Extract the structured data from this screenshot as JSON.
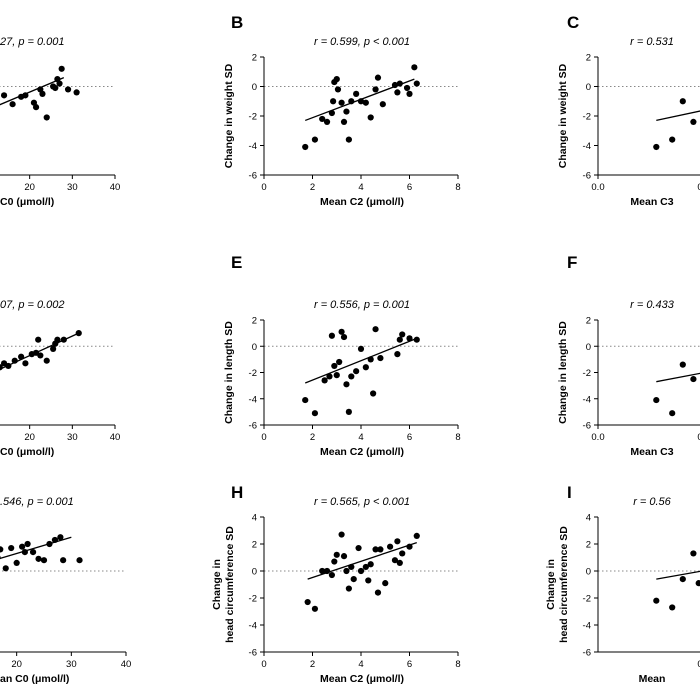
{
  "figure": {
    "background": "#ffffff",
    "axis_color": "#000000",
    "point_color": "#000000",
    "reference_line_color": "#888888"
  },
  "chart_data": [
    {
      "panel": "A",
      "type": "scatter",
      "stat_text": "27, p = 0.001",
      "xlabel": "C0 (μmol/l)",
      "ylabel": "",
      "xticks": [
        "20",
        "30",
        "40"
      ],
      "yticks": [],
      "xlim": [
        10,
        40
      ],
      "ylim": [
        -6,
        2
      ],
      "grid": false,
      "points": [
        [
          10.5,
          -0.3
        ],
        [
          11,
          -0.8
        ],
        [
          12,
          0.5
        ],
        [
          14,
          -0.6
        ],
        [
          16,
          -1.2
        ],
        [
          18,
          -0.7
        ],
        [
          19,
          -0.6
        ],
        [
          21,
          -1.1
        ],
        [
          21.5,
          -1.4
        ],
        [
          23,
          -0.5
        ],
        [
          22.5,
          -0.2
        ],
        [
          24,
          -2.1
        ],
        [
          26,
          -0.1
        ],
        [
          26.5,
          0.5
        ],
        [
          25.5,
          0
        ],
        [
          27,
          0.2
        ],
        [
          27.5,
          1.2
        ],
        [
          29,
          -0.2
        ],
        [
          31,
          -0.4
        ]
      ],
      "fit": [
        [
          10,
          -1.6
        ],
        [
          28,
          0.6
        ]
      ]
    },
    {
      "panel": "B",
      "type": "scatter",
      "stat_text": "r = 0.599, p < 0.001",
      "xlabel": "Mean C2 (μmol/l)",
      "ylabel": "Change in weight SD",
      "xticks": [
        "0",
        "2",
        "4",
        "6",
        "8"
      ],
      "yticks": [
        "2",
        "0",
        "-2",
        "-4",
        "-6"
      ],
      "xlim": [
        0,
        8
      ],
      "ylim": [
        -6,
        2
      ],
      "grid": false,
      "points": [
        [
          1.7,
          -4.1
        ],
        [
          2.1,
          -3.6
        ],
        [
          2.4,
          -2.2
        ],
        [
          2.6,
          -2.4
        ],
        [
          2.8,
          -1.8
        ],
        [
          2.85,
          -1
        ],
        [
          2.9,
          0.3
        ],
        [
          3,
          0.5
        ],
        [
          3.05,
          -0.2
        ],
        [
          3.2,
          -1.1
        ],
        [
          3.3,
          -2.4
        ],
        [
          3.4,
          -1.7
        ],
        [
          3.5,
          -3.6
        ],
        [
          3.6,
          -1
        ],
        [
          3.8,
          -0.5
        ],
        [
          4,
          -1
        ],
        [
          4.2,
          -1.1
        ],
        [
          4.4,
          -2.1
        ],
        [
          4.6,
          -0.2
        ],
        [
          4.7,
          0.6
        ],
        [
          4.9,
          -1.2
        ],
        [
          5.4,
          0.1
        ],
        [
          5.5,
          -0.4
        ],
        [
          5.6,
          0.2
        ],
        [
          5.9,
          -0.1
        ],
        [
          6,
          -0.5
        ],
        [
          6.2,
          1.3
        ],
        [
          6.3,
          0.2
        ]
      ],
      "fit": [
        [
          1.7,
          -2.3
        ],
        [
          6.2,
          0.5
        ]
      ]
    },
    {
      "panel": "C",
      "type": "scatter",
      "stat_text": "r = 0.531",
      "xlabel": "Mean C3",
      "ylabel": "Change in weight SD",
      "xticks": [
        "0.0",
        "0.2",
        "0"
      ],
      "yticks": [
        "2",
        "0",
        "-2",
        "-4",
        "-6"
      ],
      "xlim": [
        0,
        0.5
      ],
      "ylim": [
        -6,
        2
      ],
      "grid": false,
      "points": [
        [
          0.11,
          -4.1
        ],
        [
          0.14,
          -3.6
        ],
        [
          0.16,
          -1
        ],
        [
          0.18,
          -2.4
        ],
        [
          0.2,
          0.1
        ],
        [
          0.21,
          -1.9
        ],
        [
          0.22,
          -1
        ],
        [
          0.23,
          -0.6
        ],
        [
          0.24,
          -2.5
        ],
        [
          0.25,
          -1.7
        ],
        [
          0.26,
          -0.5
        ],
        [
          0.27,
          -1.1
        ],
        [
          0.28,
          -2
        ],
        [
          0.29,
          -1.6
        ],
        [
          0.3,
          -1.2
        ],
        [
          0.31,
          -0.4
        ],
        [
          0.33,
          0.5
        ],
        [
          0.34,
          0.3
        ],
        [
          0.35,
          0.7
        ],
        [
          0.36,
          -0.7
        ],
        [
          0.37,
          0
        ]
      ],
      "fit": [
        [
          0.11,
          -2.3
        ],
        [
          0.37,
          -0.3
        ]
      ]
    },
    {
      "panel": "D",
      "type": "scatter",
      "stat_text": "07, p = 0.002",
      "xlabel": "C0 (μmol/l)",
      "ylabel": "",
      "xticks": [
        "20",
        "30",
        "40"
      ],
      "yticks": [],
      "xlim": [
        10,
        40
      ],
      "ylim": [
        -6,
        2
      ],
      "grid": false,
      "points": [
        [
          10.5,
          -1.3
        ],
        [
          11.5,
          -2
        ],
        [
          13,
          -1.6
        ],
        [
          14,
          -1.3
        ],
        [
          15,
          -1.5
        ],
        [
          16.5,
          -1.1
        ],
        [
          18,
          -0.8
        ],
        [
          19,
          -1.3
        ],
        [
          20.5,
          -0.6
        ],
        [
          21.5,
          -0.5
        ],
        [
          22.5,
          -0.7
        ],
        [
          22,
          0.5
        ],
        [
          24,
          -1.1
        ],
        [
          25.5,
          -0.2
        ],
        [
          26,
          0.2
        ],
        [
          26.5,
          0.5
        ],
        [
          28,
          0.5
        ],
        [
          31.5,
          1
        ]
      ],
      "fit": [
        [
          10,
          -2.2
        ],
        [
          31.5,
          1
        ]
      ]
    },
    {
      "panel": "E",
      "type": "scatter",
      "stat_text": "r = 0.556, p = 0.001",
      "xlabel": "Mean C2 (μmol/l)",
      "ylabel": "Change in length SD",
      "xticks": [
        "0",
        "2",
        "4",
        "6",
        "8"
      ],
      "yticks": [
        "2",
        "0",
        "-2",
        "-4",
        "-6"
      ],
      "xlim": [
        0,
        8
      ],
      "ylim": [
        -6,
        2
      ],
      "grid": false,
      "points": [
        [
          1.7,
          -4.1
        ],
        [
          2.1,
          -5.1
        ],
        [
          2.5,
          -2.6
        ],
        [
          2.7,
          -2.3
        ],
        [
          2.8,
          0.8
        ],
        [
          2.9,
          -1.5
        ],
        [
          3,
          -2.2
        ],
        [
          3.2,
          1.1
        ],
        [
          3.3,
          0.7
        ],
        [
          3.1,
          -1.2
        ],
        [
          3.4,
          -2.9
        ],
        [
          3.5,
          -5
        ],
        [
          3.6,
          -2.3
        ],
        [
          3.8,
          -1.9
        ],
        [
          4,
          -0.2
        ],
        [
          4.2,
          -1.6
        ],
        [
          4.4,
          -1
        ],
        [
          4.5,
          -3.6
        ],
        [
          4.6,
          1.3
        ],
        [
          4.8,
          -0.9
        ],
        [
          5.5,
          -0.6
        ],
        [
          5.6,
          0.5
        ],
        [
          5.7,
          0.9
        ],
        [
          6,
          0.6
        ],
        [
          6.3,
          0.5
        ]
      ],
      "fit": [
        [
          1.7,
          -2.8
        ],
        [
          6.3,
          0.6
        ]
      ]
    },
    {
      "panel": "F",
      "type": "scatter",
      "stat_text": "r = 0.433",
      "xlabel": "Mean C3",
      "ylabel": "Change in length SD",
      "xticks": [
        "0.0",
        "0.2",
        "0"
      ],
      "yticks": [
        "2",
        "0",
        "-2",
        "-4",
        "-6"
      ],
      "xlim": [
        0,
        0.5
      ],
      "ylim": [
        -6,
        2
      ],
      "grid": false,
      "points": [
        [
          0.11,
          -4.1
        ],
        [
          0.14,
          -5.1
        ],
        [
          0.16,
          -1.4
        ],
        [
          0.18,
          -2.5
        ],
        [
          0.2,
          -0.8
        ],
        [
          0.21,
          0.9
        ],
        [
          0.22,
          1.1
        ],
        [
          0.23,
          -1.5
        ],
        [
          0.24,
          -4.9
        ],
        [
          0.25,
          -2.2
        ],
        [
          0.26,
          -0.6
        ],
        [
          0.27,
          -2.6
        ],
        [
          0.28,
          -1.9
        ],
        [
          0.29,
          -3
        ],
        [
          0.3,
          -1.1
        ],
        [
          0.31,
          -2.3
        ],
        [
          0.32,
          -1.2
        ],
        [
          0.34,
          -0.6
        ],
        [
          0.35,
          0.4
        ],
        [
          0.36,
          1.3
        ],
        [
          0.37,
          -0.3
        ]
      ],
      "fit": [
        [
          0.11,
          -2.7
        ],
        [
          0.37,
          -0.7
        ]
      ]
    },
    {
      "panel": "G",
      "type": "scatter",
      "stat_text": ".546, p = 0.001",
      "xlabel": "an C0 (μmol/l)",
      "ylabel": "",
      "xticks": [
        "20",
        "30",
        "40"
      ],
      "yticks": [],
      "xlim": [
        10,
        40
      ],
      "ylim": [
        -6,
        4
      ],
      "grid": false,
      "points": [
        [
          10.5,
          2.8
        ],
        [
          11,
          1.7
        ],
        [
          12,
          0.6
        ],
        [
          13,
          1.8
        ],
        [
          13.5,
          0
        ],
        [
          14,
          -0.4
        ],
        [
          15,
          1.8
        ],
        [
          16,
          0.5
        ],
        [
          16.5,
          1
        ],
        [
          17,
          1.6
        ],
        [
          18,
          0.2
        ],
        [
          19,
          1.7
        ],
        [
          20,
          0.6
        ],
        [
          21,
          1.8
        ],
        [
          21.5,
          1.4
        ],
        [
          22,
          2
        ],
        [
          23,
          1.4
        ],
        [
          24,
          0.9
        ],
        [
          25,
          0.8
        ],
        [
          26,
          2
        ],
        [
          27,
          2.3
        ],
        [
          28,
          2.5
        ],
        [
          28.5,
          0.8
        ],
        [
          31.5,
          0.8
        ]
      ],
      "fit": [
        [
          10,
          0.1
        ],
        [
          30,
          2.5
        ]
      ]
    },
    {
      "panel": "H",
      "type": "scatter",
      "stat_text": "r = 0.565, p < 0.001",
      "xlabel": "Mean C2 (μmol/l)",
      "ylabel": "Change in head circumference SD",
      "xticks": [
        "0",
        "2",
        "4",
        "6",
        "8"
      ],
      "yticks": [
        "4",
        "2",
        "0",
        "-2",
        "-4",
        "-6"
      ],
      "xlim": [
        0,
        8
      ],
      "ylim": [
        -6,
        4
      ],
      "grid": false,
      "points": [
        [
          1.8,
          -2.3
        ],
        [
          2.1,
          -2.8
        ],
        [
          2.4,
          0
        ],
        [
          2.6,
          0
        ],
        [
          2.8,
          -0.3
        ],
        [
          2.9,
          0.7
        ],
        [
          3,
          1.2
        ],
        [
          3.2,
          2.7
        ],
        [
          3.3,
          1.1
        ],
        [
          3.4,
          0
        ],
        [
          3.5,
          -1.3
        ],
        [
          3.6,
          0.3
        ],
        [
          3.7,
          -0.6
        ],
        [
          3.9,
          1.7
        ],
        [
          4,
          0
        ],
        [
          4.2,
          0.3
        ],
        [
          4.3,
          -0.7
        ],
        [
          4.4,
          0.5
        ],
        [
          4.6,
          1.6
        ],
        [
          4.7,
          -1.6
        ],
        [
          4.8,
          1.6
        ],
        [
          5,
          -0.9
        ],
        [
          5.2,
          1.8
        ],
        [
          5.4,
          0.8
        ],
        [
          5.5,
          2.2
        ],
        [
          5.6,
          0.6
        ],
        [
          5.7,
          1.3
        ],
        [
          6,
          1.8
        ],
        [
          6.3,
          2.6
        ]
      ],
      "fit": [
        [
          1.8,
          -0.6
        ],
        [
          6.3,
          2.1
        ]
      ]
    },
    {
      "panel": "I",
      "type": "scatter",
      "stat_text": "r = 0.56",
      "xlabel": "Mean",
      "ylabel": "Change in head circumference SD",
      "xticks": [
        "0.2"
      ],
      "yticks": [
        "4",
        "2",
        "0",
        "-2",
        "-4",
        "-6"
      ],
      "xlim": [
        0,
        0.5
      ],
      "ylim": [
        -6,
        4
      ],
      "grid": false,
      "points": [
        [
          0.11,
          -2.2
        ],
        [
          0.14,
          -2.7
        ],
        [
          0.16,
          -0.6
        ],
        [
          0.18,
          1.3
        ],
        [
          0.19,
          -0.9
        ],
        [
          0.2,
          0.3
        ],
        [
          0.21,
          1.5
        ],
        [
          0.22,
          -0.3
        ],
        [
          0.23,
          0.8
        ],
        [
          0.24,
          1.8
        ],
        [
          0.25,
          1.3
        ],
        [
          0.26,
          -1.1
        ],
        [
          0.27,
          1.7
        ],
        [
          0.28,
          0.5
        ],
        [
          0.29,
          1.9
        ],
        [
          0.3,
          0.9
        ],
        [
          0.31,
          -0.5
        ],
        [
          0.32,
          0.2
        ],
        [
          0.33,
          1.9
        ],
        [
          0.34,
          0
        ],
        [
          0.35,
          2.8
        ],
        [
          0.36,
          1.5
        ]
      ],
      "fit": [
        [
          0.11,
          -0.6
        ],
        [
          0.37,
          1.2
        ]
      ]
    }
  ]
}
